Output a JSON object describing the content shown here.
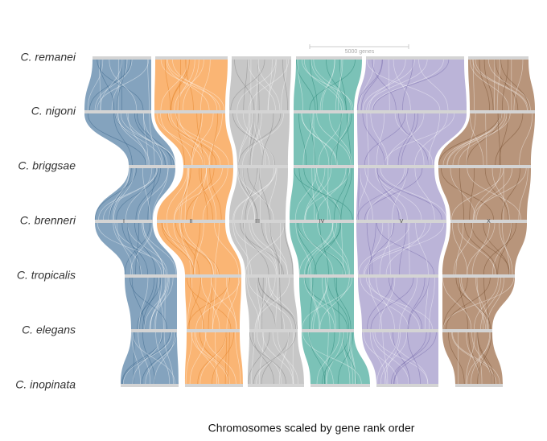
{
  "species": [
    "C. remanei",
    "C. nigoni",
    "C. briggsae",
    "C. brenneri",
    "C. tropicalis",
    "C. elegans",
    "C. inopinata"
  ],
  "chromosomes": [
    "I",
    "II",
    "III",
    "IV",
    "V",
    "X"
  ],
  "scale_bar": "5000 genes",
  "x_axis_title": "Chromosomes scaled by gene rank order"
}
